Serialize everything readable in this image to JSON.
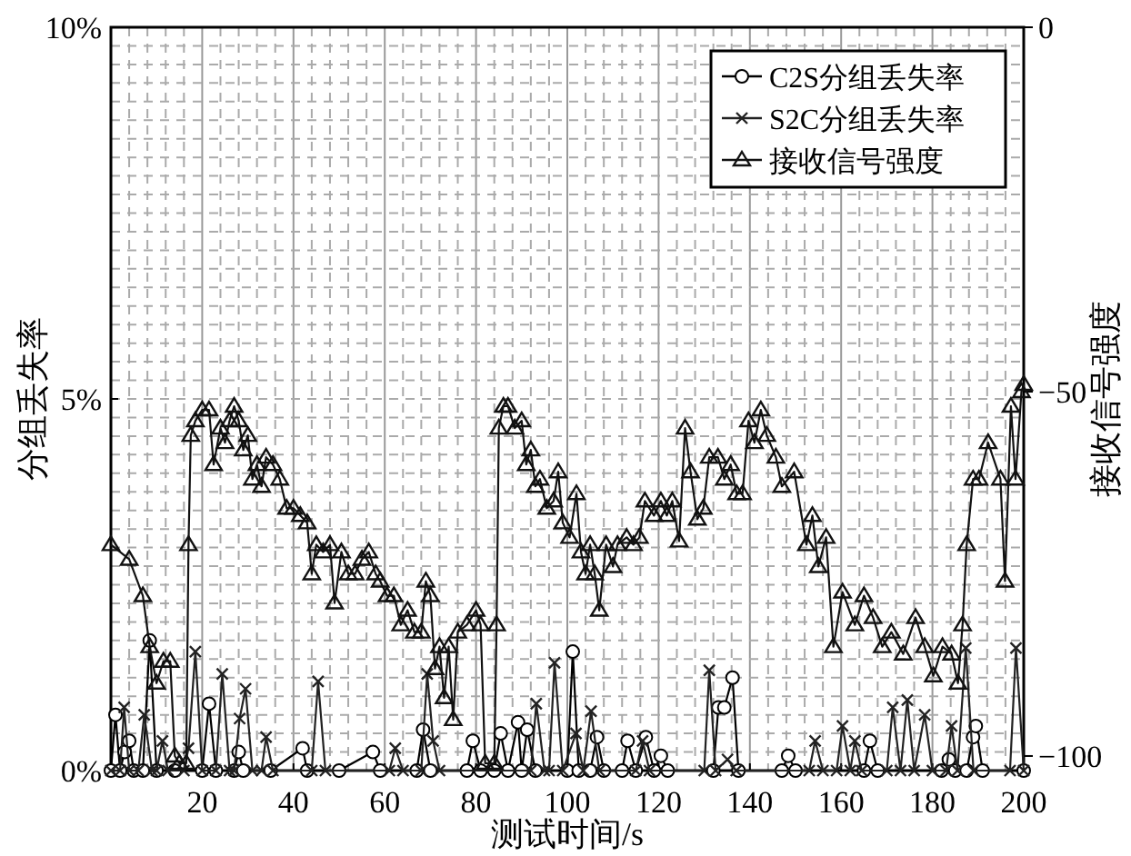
{
  "chart_data": {
    "type": "line",
    "xlabel": "测试时间/s",
    "ylabel": "分组丢失率",
    "y2label": "接收信号强度",
    "xlim": [
      0,
      200
    ],
    "xticks": [
      20,
      40,
      60,
      80,
      100,
      120,
      140,
      160,
      180,
      200
    ],
    "ylim": [
      0,
      10
    ],
    "yticks": [
      {
        "value": 0,
        "label": "0%"
      },
      {
        "value": 5,
        "label": "5%"
      },
      {
        "value": 10,
        "label": "10%"
      }
    ],
    "y2lim": [
      -102,
      0
    ],
    "y2ticks": [
      -100,
      -50,
      0
    ],
    "grid": true,
    "legend": "top right",
    "series": [
      {
        "name": "C2S分组丢失率",
        "color": "#000000",
        "marker": "circle",
        "x": [
          0,
          1,
          2,
          3,
          4,
          5,
          7,
          8.5,
          10,
          14,
          20,
          21.5,
          23,
          27,
          28,
          29,
          35,
          42,
          43,
          50,
          57.4,
          59,
          67,
          68.4,
          70,
          78,
          79.3,
          81,
          84,
          85.4,
          87,
          89.2,
          90,
          91.2,
          93,
          100,
          101.2,
          102.5,
          105,
          106.5,
          108,
          112,
          113.2,
          115,
          117.2,
          119,
          120.5,
          122,
          132,
          133.1,
          134.4,
          136.2,
          137.5,
          147,
          148.4,
          150,
          165,
          166.3,
          168,
          182,
          183.6,
          185,
          187.5,
          188.9,
          189.5,
          191,
          200
        ],
        "values": [
          0,
          0.75,
          0,
          0.25,
          0.4,
          0,
          0,
          1.75,
          0,
          0,
          0,
          0.9,
          0,
          0,
          0.25,
          0,
          0,
          0.3,
          0,
          0,
          0.25,
          0,
          0,
          0.55,
          0,
          0,
          0.4,
          0,
          0,
          0.5,
          0,
          0.65,
          0,
          0.55,
          0,
          0,
          1.6,
          0,
          0,
          0.45,
          0,
          0,
          0.4,
          0,
          0.45,
          0,
          0.2,
          0,
          0,
          0.85,
          0.85,
          1.25,
          0,
          0,
          0.2,
          0,
          0,
          0.4,
          0,
          0,
          0.15,
          0,
          0,
          0.45,
          0.6,
          0,
          0
        ]
      },
      {
        "name": "S2C分组丢失率",
        "color": "#222222",
        "marker": "cross",
        "x": [
          0,
          2,
          2.9,
          4,
          6,
          7.3,
          9,
          10,
          11.3,
          12.5,
          16,
          17,
          18.5,
          20,
          23,
          24.4,
          26,
          27,
          28.2,
          29.5,
          31,
          33,
          34,
          35.5,
          44,
          45.4,
          47,
          61,
          62.3,
          64,
          68,
          69.3,
          70.6,
          72,
          92,
          93.2,
          95,
          96,
          97.2,
          99,
          101.9,
          103.5,
          105.2,
          107,
          115,
          116.5,
          118,
          130,
          131.1,
          132.5,
          135.1,
          137,
          153,
          154.3,
          156,
          159,
          160.3,
          162,
          163,
          164.5,
          170,
          171.3,
          173,
          174.5,
          176,
          178.3,
          180,
          183,
          184.2,
          185.5,
          187.3,
          189,
          197,
          198.3,
          200
        ],
        "values": [
          0,
          0,
          0.85,
          0,
          0,
          0.75,
          0,
          0,
          0.4,
          0,
          0,
          0.3,
          1.6,
          0,
          0,
          1.3,
          0,
          0,
          0.7,
          1.1,
          0,
          0,
          0.45,
          0,
          0,
          1.2,
          0,
          0,
          0.3,
          0,
          0,
          1.3,
          0.4,
          0,
          0,
          0.9,
          0,
          0,
          1.45,
          0,
          0.5,
          0,
          0.8,
          0,
          0,
          0.4,
          0,
          0,
          1.35,
          0,
          0.15,
          0,
          0,
          0.4,
          0,
          0,
          0.6,
          0,
          0.4,
          0,
          0,
          0.85,
          0,
          0.95,
          0,
          0.75,
          0,
          0,
          0.6,
          0,
          1.65,
          0,
          0,
          1.65,
          0
        ]
      },
      {
        "name": "接收信号强度",
        "color": "#111111",
        "marker": "triangle",
        "axis": "y2",
        "x": [
          0,
          4,
          7,
          8.5,
          10,
          11.5,
          13,
          14,
          15,
          16.5,
          17,
          17.5,
          18.5,
          20,
          21.5,
          22.5,
          24,
          25,
          26,
          27,
          28,
          29,
          30,
          31,
          32,
          33,
          34,
          35.5,
          37,
          38.5,
          40,
          41.5,
          43,
          44,
          45,
          46.5,
          48,
          49,
          50.5,
          52,
          53.5,
          55,
          56.5,
          58,
          59,
          60.5,
          62,
          63.5,
          65,
          66.5,
          68,
          69,
          70,
          71,
          72,
          73,
          74,
          75,
          76,
          78,
          80,
          81,
          82,
          84,
          84.5,
          85,
          86,
          87,
          88.5,
          90,
          91,
          92,
          93,
          94,
          95.5,
          97,
          98,
          99,
          100.5,
          102,
          103,
          104,
          105,
          106,
          107,
          108.5,
          110,
          111,
          113,
          114.5,
          115.8,
          117,
          119,
          120.5,
          121.8,
          123,
          124.5,
          125.8,
          127,
          128.5,
          129.8,
          131.1,
          133,
          134.4,
          135.8,
          137.1,
          138.4,
          139.7,
          141,
          142.4,
          143.7,
          145.7,
          147,
          149.7,
          152.4,
          153.7,
          155,
          156.7,
          158.3,
          160.3,
          163,
          165,
          167,
          169,
          171,
          173.6,
          176.3,
          178.3,
          180.2,
          182.2,
          184.2,
          185.6,
          186.6,
          187.5,
          188.9,
          190.2,
          192.2,
          194.9,
          195.9,
          197.2,
          198.2,
          199.5,
          200
        ],
        "values": [
          -71,
          -73,
          -78,
          -85,
          -90,
          -87,
          -87,
          -100,
          -101,
          -101,
          -71,
          -56,
          -54,
          -52.5,
          -52.5,
          -60,
          -55,
          -57,
          -54,
          -52,
          -54,
          -58,
          -56,
          -62,
          -60,
          -63,
          -59,
          -60,
          -62,
          -66,
          -66,
          -67,
          -68,
          -75,
          -71,
          -72,
          -71,
          -79,
          -72,
          -75,
          -75,
          -73,
          -72,
          -75,
          -76,
          -78,
          -78,
          -82,
          -80,
          -83,
          -83,
          -76,
          -78,
          -88,
          -85,
          -92,
          -85,
          -95,
          -83,
          -82,
          -80,
          -82,
          -101,
          -101,
          -82,
          -55,
          -52,
          -52,
          -55,
          -54,
          -60,
          -58,
          -63,
          -62,
          -66,
          -65,
          -61,
          -68,
          -70,
          -64,
          -72,
          -75,
          -71,
          -75,
          -80,
          -71,
          -74,
          -71,
          -70,
          -71,
          -70,
          -65,
          -67,
          -65,
          -67,
          -65,
          -70.5,
          -55,
          -61,
          -67.5,
          -66,
          -59,
          -59,
          -62,
          -60,
          -64,
          -64,
          -54,
          -57,
          -52.5,
          -56,
          -59,
          -63,
          -61,
          -71,
          -67,
          -74,
          -70,
          -85,
          -77.5,
          -82,
          -78,
          -81,
          -85,
          -83,
          -86,
          -81,
          -85,
          -89,
          -85,
          -86,
          -90,
          -82,
          -71,
          -62,
          -62,
          -57,
          -62,
          -76,
          -52,
          -62,
          -50,
          -49
        ]
      }
    ]
  }
}
